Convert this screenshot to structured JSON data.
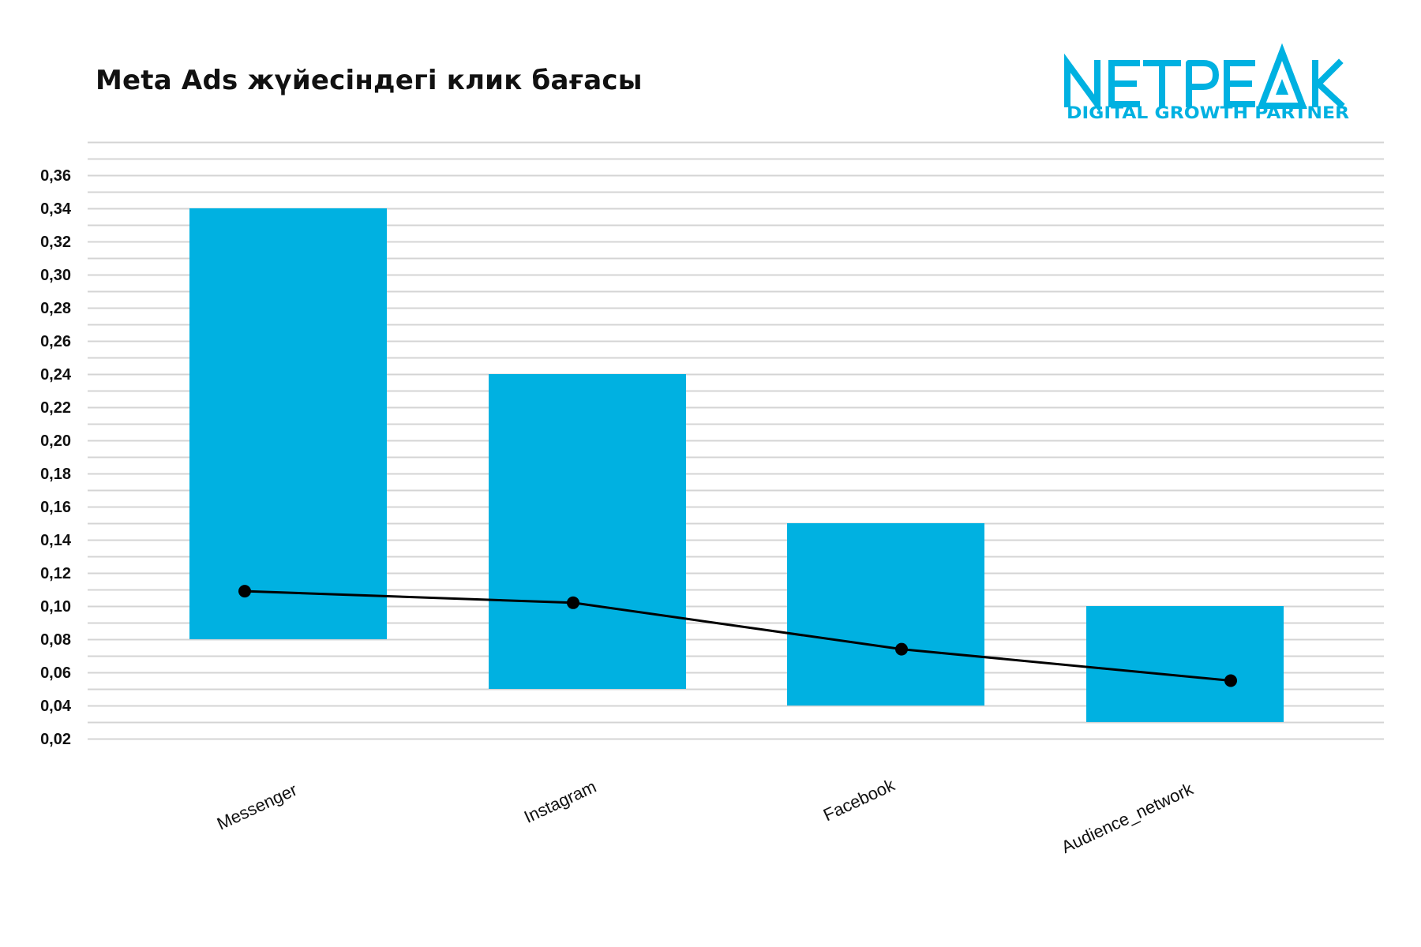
{
  "brand": {
    "name": "NETPEAK",
    "tagline": "DIGITAL GROWTH PARTNER",
    "color": "#00B1E1"
  },
  "chart_data": {
    "type": "bar",
    "title": "Meta Ads жүйесіндегі клик бағасы",
    "xlabel": "",
    "ylabel": "",
    "ylim": [
      0.02,
      0.38
    ],
    "y_ticks": [
      "0,02",
      "0,04",
      "0,06",
      "0,08",
      "0,10",
      "0,12",
      "0,14",
      "0,16",
      "0,18",
      "0,20",
      "0,22",
      "0,24",
      "0,26",
      "0,28",
      "0,30",
      "0,32",
      "0,34",
      "0,36"
    ],
    "categories": [
      "Messenger",
      "Instagram",
      "Facebook",
      "Audience_network"
    ],
    "bars": [
      {
        "low": 0.08,
        "high": 0.34
      },
      {
        "low": 0.05,
        "high": 0.24
      },
      {
        "low": 0.04,
        "high": 0.15
      },
      {
        "low": 0.03,
        "high": 0.1
      }
    ],
    "line_values": [
      0.109,
      0.102,
      0.074,
      0.055
    ],
    "grid": true,
    "legend": "none",
    "colors": {
      "bar": "#00B1E1",
      "line": "#000000",
      "grid": "#d4d4d4"
    }
  }
}
